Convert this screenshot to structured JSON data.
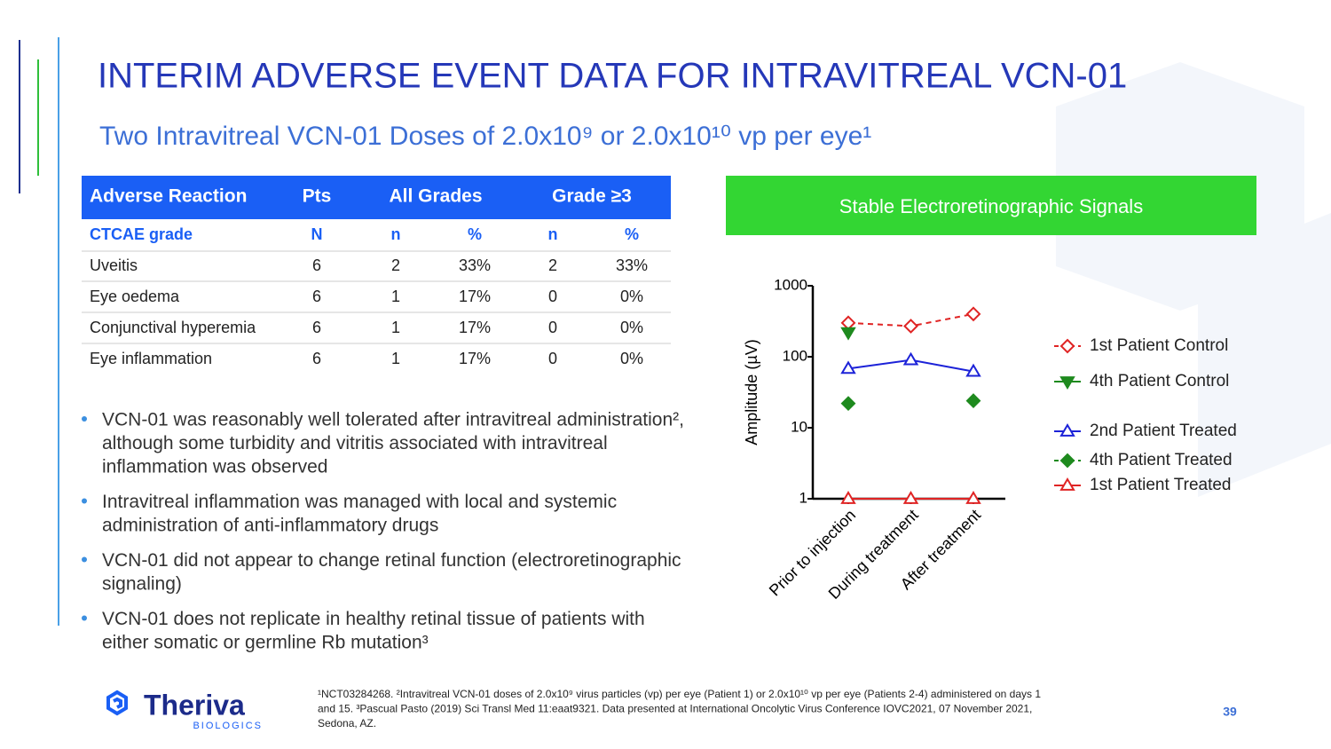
{
  "header": {
    "title": "INTERIM ADVERSE EVENT DATA FOR INTRAVITREAL VCN-01",
    "subtitle": "Two Intravitreal VCN-01 Doses of 2.0x10⁹ or 2.0x10¹⁰ vp per eye¹"
  },
  "table": {
    "header": [
      "Adverse Reaction",
      "Pts",
      "All Grades",
      "Grade ≥3"
    ],
    "subheader": [
      "CTCAE grade",
      "N",
      "n",
      "%",
      "n",
      "%"
    ],
    "rows": [
      [
        "Uveitis",
        "6",
        "2",
        "33%",
        "2",
        "33%"
      ],
      [
        "Eye oedema",
        "6",
        "1",
        "17%",
        "0",
        "0%"
      ],
      [
        "Conjunctival  hyperemia",
        "6",
        "1",
        "17%",
        "0",
        "0%"
      ],
      [
        "Eye inflammation",
        "6",
        "1",
        "17%",
        "0",
        "0%"
      ]
    ]
  },
  "bullets": [
    [
      "VCN-01 was reasonably well tolerated after intravitreal administration²,",
      "although some turbidity and vitritis associated with intravitreal",
      "inflammation was observed"
    ],
    [
      "Intravitreal inflammation was managed with local and systemic",
      "administration of anti-inflammatory drugs"
    ],
    [
      "VCN-01 did not appear to change retinal function (electroretinographic",
      "signaling)"
    ],
    [
      "VCN-01 does not replicate in healthy retinal tissue of patients with",
      "either somatic or germline Rb mutation³"
    ]
  ],
  "panel_title": "Stable Electroretinographic  Signals",
  "chart_data": {
    "type": "line",
    "y_label": "Amplitude (µV)",
    "categories": [
      "Prior to injection",
      "During treatment",
      "After treatment"
    ],
    "log_scale": true,
    "ylim": [
      1,
      1000
    ],
    "yticks": [
      1,
      10,
      100,
      1000
    ],
    "series": [
      {
        "name": "1st Patient Control",
        "color": "#e02424",
        "marker": "diamond-open",
        "dashed": true,
        "values": [
          300,
          270,
          400
        ]
      },
      {
        "name": "4th Patient Control",
        "color": "#1e8a1e",
        "marker": "triangle-down",
        "dashed": false,
        "values": [
          220,
          null,
          null
        ]
      },
      {
        "name": "2nd Patient Treated",
        "color": "#1c22d8",
        "marker": "triangle-open",
        "dashed": false,
        "values": [
          68,
          90,
          62
        ]
      },
      {
        "name": "4th Patient Treated",
        "color": "#1e8a1e",
        "marker": "diamond",
        "dashed": true,
        "values": [
          22,
          null,
          24
        ]
      },
      {
        "name": "1st Patient Treated",
        "color": "#e02424",
        "marker": "triangle-open",
        "dashed": false,
        "values": [
          1,
          1,
          1
        ]
      }
    ]
  },
  "footnote": [
    "¹NCT03284268. ²Intravitreal VCN-01 doses of 2.0x10⁹ virus particles (vp) per eye (Patient 1) or 2.0x10¹⁰ vp per eye (Patients 2-4) administered on days 1",
    "and 15. ³Pascual Pasto (2019) Sci Transl Med 11:eaat9321. Data presented at International Oncolytic Virus Conference IOVC2021, 07 November 2021,",
    "Sedona, AZ."
  ],
  "logo": {
    "name": "Theriva",
    "tagline": "BIOLOGICS"
  },
  "page_number": "39"
}
